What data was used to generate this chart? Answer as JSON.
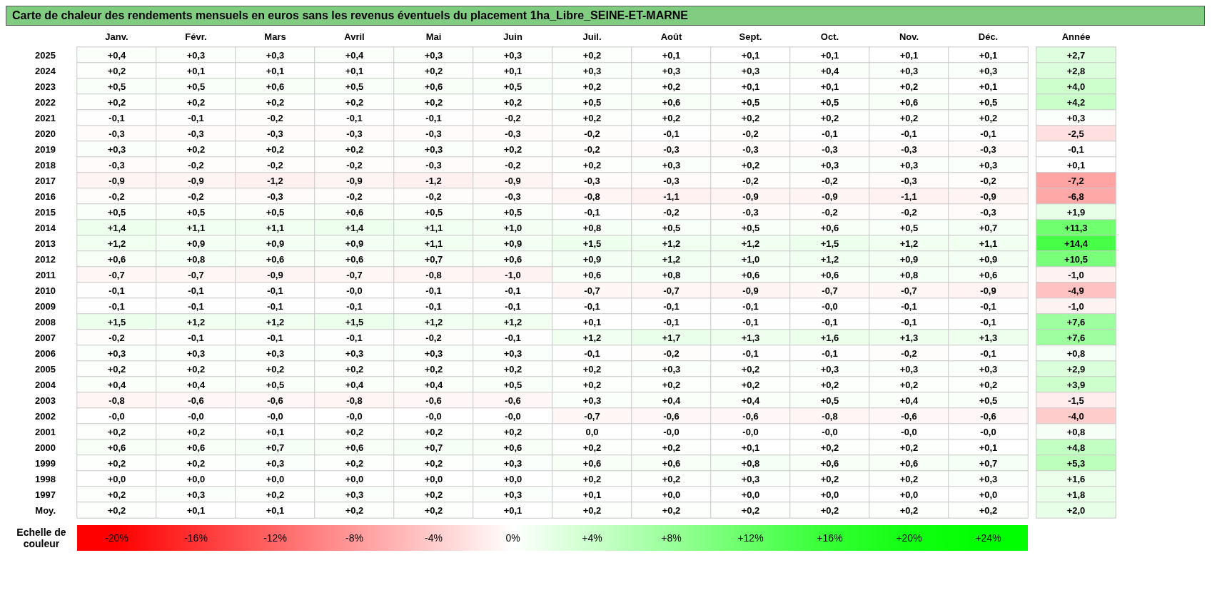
{
  "chart_data": {
    "type": "heatmap",
    "title": "Carte de chaleur des rendements mensuels en euros sans les revenus éventuels du placement 1ha_Libre_SEINE-ET-MARNE",
    "categories": [
      "Janv.",
      "Févr.",
      "Mars",
      "Avril",
      "Mai",
      "Juin",
      "Juil.",
      "Août",
      "Sept.",
      "Oct.",
      "Nov.",
      "Déc.",
      "Année"
    ],
    "y_categories": [
      "2025",
      "2024",
      "2023",
      "2022",
      "2021",
      "2020",
      "2019",
      "2018",
      "2017",
      "2016",
      "2015",
      "2014",
      "2013",
      "2012",
      "2011",
      "2010",
      "2009",
      "2008",
      "2007",
      "2006",
      "2005",
      "2004",
      "2003",
      "2002",
      "2001",
      "2000",
      "1999",
      "1998",
      "1997",
      "Moy."
    ],
    "cells": [
      [
        0.4,
        0.3,
        0.3,
        0.4,
        0.3,
        0.3,
        0.2,
        0.1,
        0.1,
        0.1,
        0.1,
        0.1,
        2.7
      ],
      [
        0.2,
        0.1,
        0.1,
        0.1,
        0.2,
        0.1,
        0.3,
        0.3,
        0.3,
        0.4,
        0.3,
        0.3,
        2.8
      ],
      [
        0.5,
        0.5,
        0.6,
        0.5,
        0.6,
        0.5,
        0.2,
        0.2,
        0.1,
        0.1,
        0.2,
        0.1,
        4.0
      ],
      [
        0.2,
        0.2,
        0.2,
        0.2,
        0.2,
        0.2,
        0.5,
        0.6,
        0.5,
        0.5,
        0.6,
        0.5,
        4.2
      ],
      [
        -0.1,
        -0.1,
        -0.2,
        -0.1,
        -0.1,
        -0.2,
        0.2,
        0.2,
        0.2,
        0.2,
        0.2,
        0.2,
        0.3
      ],
      [
        -0.3,
        -0.3,
        -0.3,
        -0.3,
        -0.3,
        -0.3,
        -0.2,
        -0.1,
        -0.2,
        -0.1,
        -0.1,
        -0.1,
        -2.5
      ],
      [
        0.3,
        0.2,
        0.2,
        0.2,
        0.3,
        0.2,
        -0.2,
        -0.3,
        -0.3,
        -0.3,
        -0.3,
        -0.3,
        -0.1
      ],
      [
        -0.3,
        -0.2,
        -0.2,
        -0.2,
        -0.3,
        -0.2,
        0.2,
        0.3,
        0.2,
        0.3,
        0.3,
        0.3,
        0.1
      ],
      [
        -0.9,
        -0.9,
        -1.2,
        -0.9,
        -1.2,
        -0.9,
        -0.3,
        -0.3,
        -0.2,
        -0.2,
        -0.3,
        -0.2,
        -7.2
      ],
      [
        -0.2,
        -0.2,
        -0.3,
        -0.2,
        -0.2,
        -0.3,
        -0.8,
        -1.1,
        -0.9,
        -0.9,
        -1.1,
        -0.9,
        -6.8
      ],
      [
        0.5,
        0.5,
        0.5,
        0.6,
        0.5,
        0.5,
        -0.1,
        -0.2,
        -0.3,
        -0.2,
        -0.2,
        -0.3,
        1.9
      ],
      [
        1.4,
        1.1,
        1.1,
        1.4,
        1.1,
        1.0,
        0.8,
        0.5,
        0.5,
        0.6,
        0.5,
        0.7,
        11.3
      ],
      [
        1.2,
        0.9,
        0.9,
        0.9,
        1.1,
        0.9,
        1.5,
        1.2,
        1.2,
        1.5,
        1.2,
        1.1,
        14.4
      ],
      [
        0.6,
        0.8,
        0.6,
        0.6,
        0.7,
        0.6,
        0.9,
        1.2,
        1.0,
        1.2,
        0.9,
        0.9,
        10.5
      ],
      [
        -0.7,
        -0.7,
        -0.9,
        -0.7,
        -0.8,
        -1.0,
        0.6,
        0.8,
        0.6,
        0.6,
        0.8,
        0.6,
        -1.0
      ],
      [
        -0.1,
        -0.1,
        -0.1,
        0,
        -0.1,
        -0.1,
        -0.7,
        -0.7,
        -0.9,
        -0.7,
        -0.7,
        -0.9,
        -4.9
      ],
      [
        -0.1,
        -0.1,
        -0.1,
        -0.1,
        -0.1,
        -0.1,
        -0.1,
        -0.1,
        -0.1,
        0,
        -0.1,
        -0.1,
        -1.0
      ],
      [
        1.5,
        1.2,
        1.2,
        1.5,
        1.2,
        1.2,
        0.1,
        -0.1,
        -0.1,
        -0.1,
        -0.1,
        -0.1,
        7.6
      ],
      [
        -0.2,
        -0.1,
        -0.1,
        -0.1,
        -0.2,
        -0.1,
        1.2,
        1.7,
        1.3,
        1.6,
        1.3,
        1.3,
        7.6
      ],
      [
        0.3,
        0.3,
        0.3,
        0.3,
        0.3,
        0.3,
        -0.1,
        -0.2,
        -0.1,
        -0.1,
        -0.2,
        -0.1,
        0.8
      ],
      [
        0.2,
        0.2,
        0.2,
        0.2,
        0.2,
        0.2,
        0.2,
        0.3,
        0.2,
        0.3,
        0.3,
        0.3,
        2.9
      ],
      [
        0.4,
        0.4,
        0.5,
        0.4,
        0.4,
        0.5,
        0.2,
        0.2,
        0.2,
        0.2,
        0.2,
        0.2,
        3.9
      ],
      [
        -0.8,
        -0.6,
        -0.6,
        -0.8,
        -0.6,
        -0.6,
        0.3,
        0.4,
        0.4,
        0.5,
        0.4,
        0.5,
        -1.5
      ],
      [
        0,
        0,
        0,
        0,
        0,
        0,
        -0.7,
        -0.6,
        -0.6,
        -0.8,
        -0.6,
        -0.6,
        -4.0
      ],
      [
        0.2,
        0.2,
        0.1,
        0.2,
        0.2,
        0.2,
        0,
        0,
        0,
        0,
        0,
        0,
        0.8
      ],
      [
        0.6,
        0.6,
        0.7,
        0.6,
        0.7,
        0.6,
        0.2,
        0.2,
        0.1,
        0.2,
        0.2,
        0.1,
        4.8
      ],
      [
        0.2,
        0.2,
        0.3,
        0.2,
        0.2,
        0.3,
        0.6,
        0.6,
        0.8,
        0.6,
        0.6,
        0.7,
        5.3
      ],
      [
        0,
        0,
        0,
        0,
        0,
        0,
        0.2,
        0.2,
        0.3,
        0.2,
        0.2,
        0.3,
        1.6
      ],
      [
        0.2,
        0.3,
        0.2,
        0.3,
        0.2,
        0.3,
        0.1,
        0,
        0,
        0,
        0,
        0,
        1.8
      ],
      [
        0.2,
        0.1,
        0.1,
        0.2,
        0.2,
        0.1,
        0.2,
        0.2,
        0.2,
        0.2,
        0.2,
        0.2,
        2.0
      ]
    ],
    "cell_labels": [
      [
        "+0,4",
        "+0,3",
        "+0,3",
        "+0,4",
        "+0,3",
        "+0,3",
        "+0,2",
        "+0,1",
        "+0,1",
        "+0,1",
        "+0,1",
        "+0,1",
        "+2,7"
      ],
      [
        "+0,2",
        "+0,1",
        "+0,1",
        "+0,1",
        "+0,2",
        "+0,1",
        "+0,3",
        "+0,3",
        "+0,3",
        "+0,4",
        "+0,3",
        "+0,3",
        "+2,8"
      ],
      [
        "+0,5",
        "+0,5",
        "+0,6",
        "+0,5",
        "+0,6",
        "+0,5",
        "+0,2",
        "+0,2",
        "+0,1",
        "+0,1",
        "+0,2",
        "+0,1",
        "+4,0"
      ],
      [
        "+0,2",
        "+0,2",
        "+0,2",
        "+0,2",
        "+0,2",
        "+0,2",
        "+0,5",
        "+0,6",
        "+0,5",
        "+0,5",
        "+0,6",
        "+0,5",
        "+4,2"
      ],
      [
        "-0,1",
        "-0,1",
        "-0,2",
        "-0,1",
        "-0,1",
        "-0,2",
        "+0,2",
        "+0,2",
        "+0,2",
        "+0,2",
        "+0,2",
        "+0,2",
        "+0,3"
      ],
      [
        "-0,3",
        "-0,3",
        "-0,3",
        "-0,3",
        "-0,3",
        "-0,3",
        "-0,2",
        "-0,1",
        "-0,2",
        "-0,1",
        "-0,1",
        "-0,1",
        "-2,5"
      ],
      [
        "+0,3",
        "+0,2",
        "+0,2",
        "+0,2",
        "+0,3",
        "+0,2",
        "-0,2",
        "-0,3",
        "-0,3",
        "-0,3",
        "-0,3",
        "-0,3",
        "-0,1"
      ],
      [
        "-0,3",
        "-0,2",
        "-0,2",
        "-0,2",
        "-0,3",
        "-0,2",
        "+0,2",
        "+0,3",
        "+0,2",
        "+0,3",
        "+0,3",
        "+0,3",
        "+0,1"
      ],
      [
        "-0,9",
        "-0,9",
        "-1,2",
        "-0,9",
        "-1,2",
        "-0,9",
        "-0,3",
        "-0,3",
        "-0,2",
        "-0,2",
        "-0,3",
        "-0,2",
        "-7,2"
      ],
      [
        "-0,2",
        "-0,2",
        "-0,3",
        "-0,2",
        "-0,2",
        "-0,3",
        "-0,8",
        "-1,1",
        "-0,9",
        "-0,9",
        "-1,1",
        "-0,9",
        "-6,8"
      ],
      [
        "+0,5",
        "+0,5",
        "+0,5",
        "+0,6",
        "+0,5",
        "+0,5",
        "-0,1",
        "-0,2",
        "-0,3",
        "-0,2",
        "-0,2",
        "-0,3",
        "+1,9"
      ],
      [
        "+1,4",
        "+1,1",
        "+1,1",
        "+1,4",
        "+1,1",
        "+1,0",
        "+0,8",
        "+0,5",
        "+0,5",
        "+0,6",
        "+0,5",
        "+0,7",
        "+11,3"
      ],
      [
        "+1,2",
        "+0,9",
        "+0,9",
        "+0,9",
        "+1,1",
        "+0,9",
        "+1,5",
        "+1,2",
        "+1,2",
        "+1,5",
        "+1,2",
        "+1,1",
        "+14,4"
      ],
      [
        "+0,6",
        "+0,8",
        "+0,6",
        "+0,6",
        "+0,7",
        "+0,6",
        "+0,9",
        "+1,2",
        "+1,0",
        "+1,2",
        "+0,9",
        "+0,9",
        "+10,5"
      ],
      [
        "-0,7",
        "-0,7",
        "-0,9",
        "-0,7",
        "-0,8",
        "-1,0",
        "+0,6",
        "+0,8",
        "+0,6",
        "+0,6",
        "+0,8",
        "+0,6",
        "-1,0"
      ],
      [
        "-0,1",
        "-0,1",
        "-0,1",
        "-0,0",
        "-0,1",
        "-0,1",
        "-0,7",
        "-0,7",
        "-0,9",
        "-0,7",
        "-0,7",
        "-0,9",
        "-4,9"
      ],
      [
        "-0,1",
        "-0,1",
        "-0,1",
        "-0,1",
        "-0,1",
        "-0,1",
        "-0,1",
        "-0,1",
        "-0,1",
        "-0,0",
        "-0,1",
        "-0,1",
        "-1,0"
      ],
      [
        "+1,5",
        "+1,2",
        "+1,2",
        "+1,5",
        "+1,2",
        "+1,2",
        "+0,1",
        "-0,1",
        "-0,1",
        "-0,1",
        "-0,1",
        "-0,1",
        "+7,6"
      ],
      [
        "-0,2",
        "-0,1",
        "-0,1",
        "-0,1",
        "-0,2",
        "-0,1",
        "+1,2",
        "+1,7",
        "+1,3",
        "+1,6",
        "+1,3",
        "+1,3",
        "+7,6"
      ],
      [
        "+0,3",
        "+0,3",
        "+0,3",
        "+0,3",
        "+0,3",
        "+0,3",
        "-0,1",
        "-0,2",
        "-0,1",
        "-0,1",
        "-0,2",
        "-0,1",
        "+0,8"
      ],
      [
        "+0,2",
        "+0,2",
        "+0,2",
        "+0,2",
        "+0,2",
        "+0,2",
        "+0,2",
        "+0,3",
        "+0,2",
        "+0,3",
        "+0,3",
        "+0,3",
        "+2,9"
      ],
      [
        "+0,4",
        "+0,4",
        "+0,5",
        "+0,4",
        "+0,4",
        "+0,5",
        "+0,2",
        "+0,2",
        "+0,2",
        "+0,2",
        "+0,2",
        "+0,2",
        "+3,9"
      ],
      [
        "-0,8",
        "-0,6",
        "-0,6",
        "-0,8",
        "-0,6",
        "-0,6",
        "+0,3",
        "+0,4",
        "+0,4",
        "+0,5",
        "+0,4",
        "+0,5",
        "-1,5"
      ],
      [
        "-0,0",
        "-0,0",
        "-0,0",
        "-0,0",
        "-0,0",
        "-0,0",
        "-0,7",
        "-0,6",
        "-0,6",
        "-0,8",
        "-0,6",
        "-0,6",
        "-4,0"
      ],
      [
        "+0,2",
        "+0,2",
        "+0,1",
        "+0,2",
        "+0,2",
        "+0,2",
        "0,0",
        "-0,0",
        "-0,0",
        "-0,0",
        "-0,0",
        "-0,0",
        "+0,8"
      ],
      [
        "+0,6",
        "+0,6",
        "+0,7",
        "+0,6",
        "+0,7",
        "+0,6",
        "+0,2",
        "+0,2",
        "+0,1",
        "+0,2",
        "+0,2",
        "+0,1",
        "+4,8"
      ],
      [
        "+0,2",
        "+0,2",
        "+0,3",
        "+0,2",
        "+0,2",
        "+0,3",
        "+0,6",
        "+0,6",
        "+0,8",
        "+0,6",
        "+0,6",
        "+0,7",
        "+5,3"
      ],
      [
        "+0,0",
        "+0,0",
        "+0,0",
        "+0,0",
        "+0,0",
        "+0,0",
        "+0,2",
        "+0,2",
        "+0,3",
        "+0,2",
        "+0,2",
        "+0,3",
        "+1,6"
      ],
      [
        "+0,2",
        "+0,3",
        "+0,2",
        "+0,3",
        "+0,2",
        "+0,3",
        "+0,1",
        "+0,0",
        "+0,0",
        "+0,0",
        "+0,0",
        "+0,0",
        "+1,8"
      ],
      [
        "+0,2",
        "+0,1",
        "+0,1",
        "+0,2",
        "+0,2",
        "+0,1",
        "+0,2",
        "+0,2",
        "+0,2",
        "+0,2",
        "+0,2",
        "+0,2",
        "+2,0"
      ]
    ],
    "clim": [
      -20,
      24
    ],
    "cticks": [
      {
        "value": -20,
        "label": "-20%"
      },
      {
        "value": -16,
        "label": "-16%"
      },
      {
        "value": -12,
        "label": "-12%"
      },
      {
        "value": -8,
        "label": "-8%"
      },
      {
        "value": -4,
        "label": "-4%"
      },
      {
        "value": 0,
        "label": "0%"
      },
      {
        "value": 4,
        "label": "+4%"
      },
      {
        "value": 8,
        "label": "+8%"
      },
      {
        "value": 12,
        "label": "+12%"
      },
      {
        "value": 16,
        "label": "+16%"
      },
      {
        "value": 20,
        "label": "+20%"
      },
      {
        "value": 24,
        "label": "+24%"
      }
    ],
    "clabel": "Echelle de couleur"
  }
}
